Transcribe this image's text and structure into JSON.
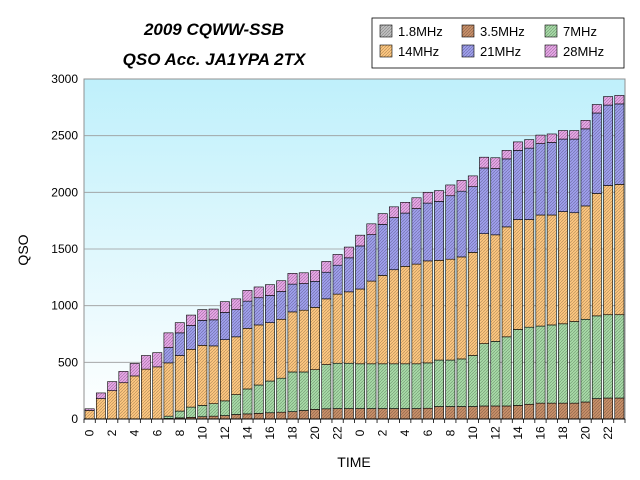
{
  "chart_data": {
    "type": "bar",
    "stacked": true,
    "title_lines": [
      "2009 CQWW-SSB",
      "QSO Acc.  JA1YPA  2TX"
    ],
    "xlabel": "TIME",
    "ylabel": "QSO",
    "ylim": [
      0,
      3000
    ],
    "yticks": [
      0,
      500,
      1000,
      1500,
      2000,
      2500,
      3000
    ],
    "grid": true,
    "legend_position": "top-right",
    "x": [
      0,
      1,
      2,
      3,
      4,
      5,
      6,
      7,
      8,
      9,
      10,
      11,
      12,
      13,
      14,
      15,
      16,
      17,
      18,
      19,
      20,
      21,
      22,
      23,
      0,
      1,
      2,
      3,
      4,
      5,
      6,
      7,
      8,
      9,
      10,
      11,
      12,
      13,
      14,
      15,
      16,
      17,
      18,
      19,
      20,
      21,
      22,
      23
    ],
    "xtick_labels": [
      "0",
      "2",
      "4",
      "6",
      "8",
      "10",
      "12",
      "14",
      "16",
      "18",
      "20",
      "22",
      "0",
      "2",
      "4",
      "6",
      "8",
      "10",
      "12",
      "14",
      "16",
      "18",
      "20",
      "22"
    ],
    "series": [
      {
        "name": "1.8MHz",
        "color": "#c0c0c0",
        "values": [
          0,
          0,
          0,
          0,
          0,
          0,
          0,
          0,
          0,
          0,
          0,
          0,
          0,
          0,
          0,
          0,
          0,
          0,
          0,
          0,
          0,
          0,
          0,
          0,
          0,
          0,
          0,
          0,
          0,
          0,
          0,
          0,
          0,
          0,
          0,
          0,
          0,
          0,
          0,
          0,
          0,
          0,
          0,
          0,
          0,
          0,
          0,
          0
        ]
      },
      {
        "name": "3.5MHz",
        "color": "#c9906a",
        "values": [
          0,
          0,
          0,
          0,
          0,
          0,
          0,
          5,
          10,
          15,
          20,
          25,
          30,
          40,
          45,
          50,
          55,
          60,
          65,
          75,
          85,
          90,
          92,
          92,
          92,
          92,
          92,
          92,
          92,
          92,
          95,
          110,
          110,
          110,
          110,
          115,
          115,
          115,
          120,
          130,
          140,
          140,
          140,
          140,
          150,
          180,
          185,
          185
        ]
      },
      {
        "name": "7MHz",
        "color": "#a8dca8",
        "values": [
          0,
          0,
          0,
          0,
          0,
          0,
          0,
          20,
          60,
          90,
          100,
          110,
          130,
          175,
          220,
          250,
          280,
          300,
          350,
          340,
          350,
          390,
          400,
          400,
          395,
          395,
          395,
          395,
          395,
          395,
          400,
          410,
          410,
          420,
          450,
          550,
          570,
          610,
          670,
          680,
          680,
          690,
          700,
          720,
          730,
          730,
          735,
          735
        ]
      },
      {
        "name": "14MHz",
        "color": "#ffc880",
        "values": [
          75,
          180,
          250,
          320,
          380,
          440,
          460,
          470,
          490,
          510,
          530,
          510,
          540,
          510,
          535,
          530,
          515,
          520,
          530,
          545,
          550,
          580,
          610,
          630,
          660,
          730,
          780,
          830,
          860,
          880,
          900,
          880,
          890,
          900,
          910,
          970,
          940,
          970,
          970,
          950,
          980,
          970,
          990,
          960,
          1000,
          1080,
          1140,
          1150
        ]
      },
      {
        "name": "21MHz",
        "color": "#a0a0ee",
        "values": [
          0,
          0,
          0,
          0,
          0,
          0,
          0,
          135,
          200,
          210,
          220,
          230,
          240,
          240,
          240,
          240,
          240,
          245,
          245,
          235,
          230,
          235,
          255,
          300,
          380,
          410,
          450,
          460,
          470,
          490,
          510,
          520,
          560,
          580,
          580,
          580,
          585,
          600,
          610,
          630,
          630,
          640,
          640,
          650,
          680,
          710,
          710,
          710
        ]
      },
      {
        "name": "28MHz",
        "color": "#e8a6e8",
        "values": [
          15,
          50,
          80,
          100,
          110,
          120,
          125,
          130,
          90,
          92,
          95,
          95,
          95,
          95,
          95,
          95,
          95,
          95,
          95,
          95,
          95,
          95,
          95,
          95,
          95,
          95,
          95,
          95,
          95,
          95,
          95,
          95,
          95,
          95,
          95,
          95,
          95,
          75,
          75,
          75,
          75,
          75,
          75,
          75,
          75,
          75,
          75,
          75
        ]
      }
    ]
  }
}
